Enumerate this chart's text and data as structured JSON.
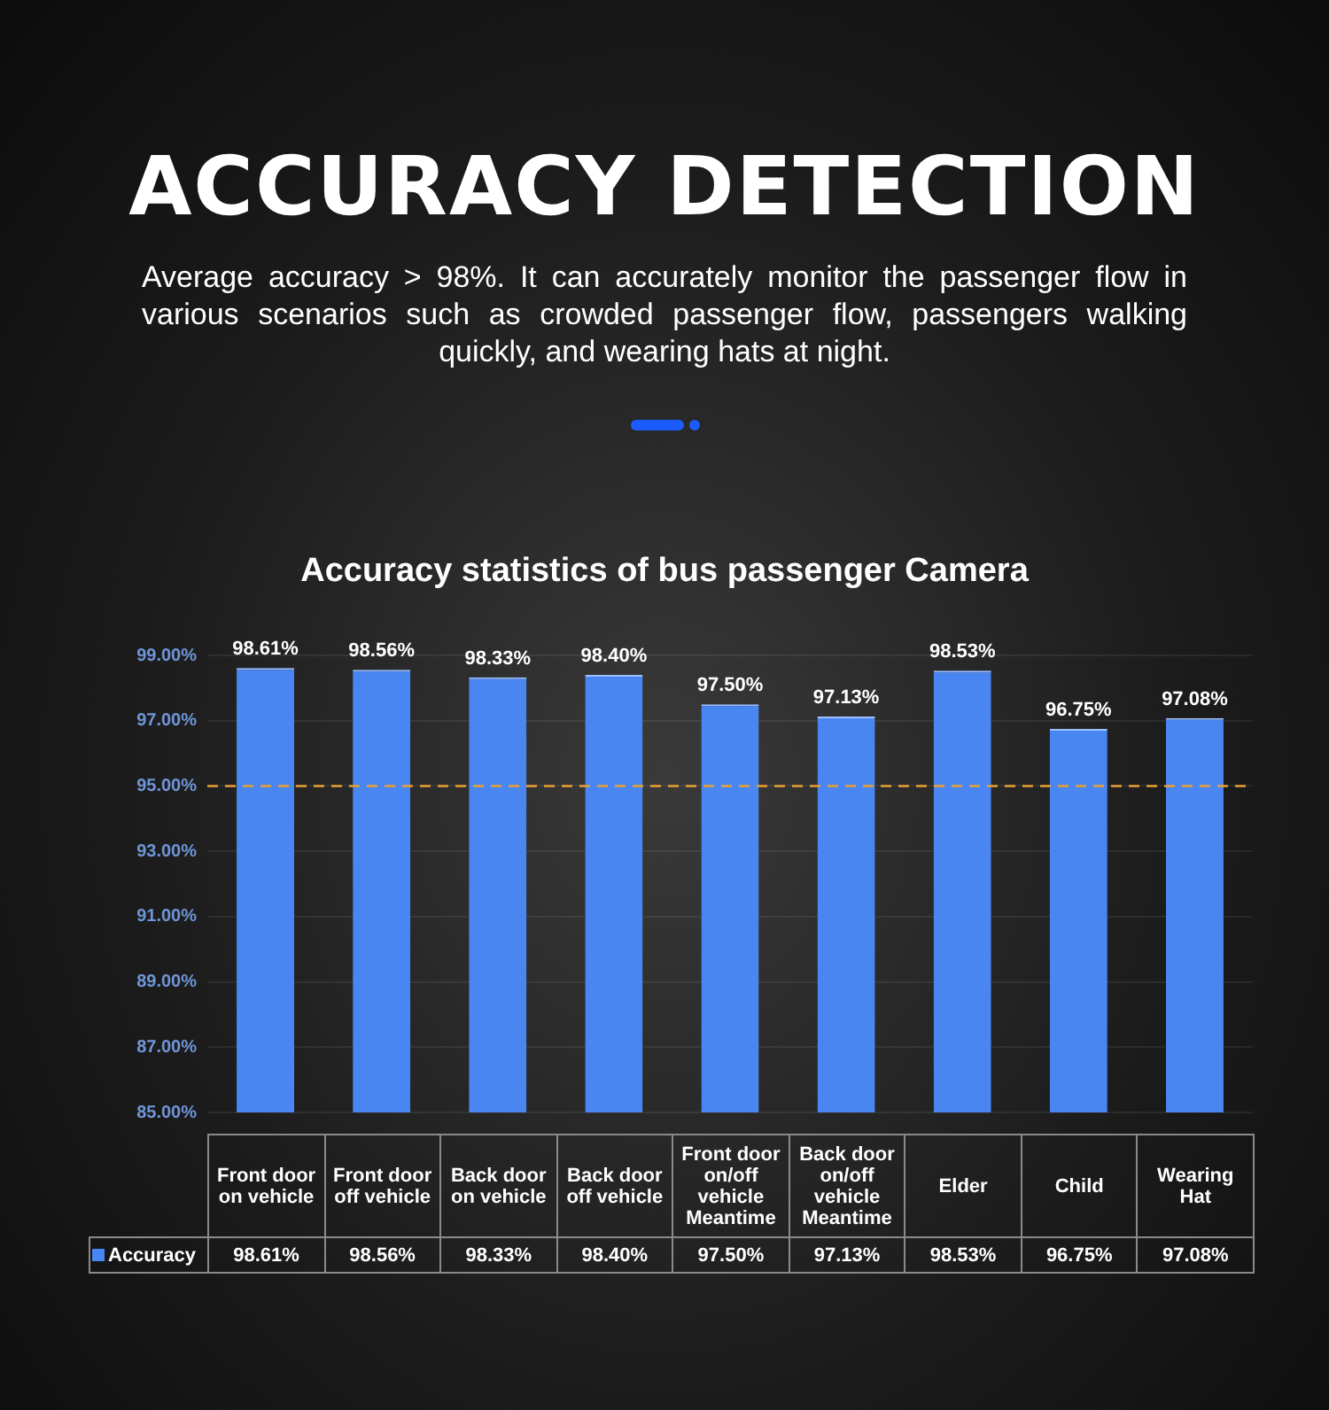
{
  "chart_data": {
    "type": "bar",
    "title": "ACCURACY DETECTION",
    "subtitle": "Average accuracy > 98%. It can accurately monitor the passenger flow in various scenarios such as crowded passenger flow, passengers walking quickly, and wearing hats at night.",
    "annotations": [
      "Accuracy statistics of bus passenger Camera"
    ],
    "categories": [
      "Front door on vehicle",
      "Front door off vehicle",
      "Back door on vehicle",
      "Back door off vehicle",
      "Front door on/off vehicle Meantime",
      "Back door on/off vehicle Meantime",
      "Elder",
      "Child",
      "Wearing Hat"
    ],
    "series": [
      {
        "name": "Accuracy",
        "color": "#4a86f2",
        "values": [
          98.61,
          98.56,
          98.33,
          98.4,
          97.5,
          97.13,
          98.53,
          96.75,
          97.08
        ]
      }
    ],
    "value_labels": [
      "98.61%",
      "98.56%",
      "98.33%",
      "98.40%",
      "97.50%",
      "97.13%",
      "98.53%",
      "96.75%",
      "97.08%"
    ],
    "ylim": [
      85,
      99
    ],
    "yticks": [
      {
        "value": 85,
        "label": "85.00%"
      },
      {
        "value": 87,
        "label": "87.00%"
      },
      {
        "value": 89,
        "label": "89.00%"
      },
      {
        "value": 91,
        "label": "91.00%"
      },
      {
        "value": 93,
        "label": "93.00%"
      },
      {
        "value": 95,
        "label": "95.00%"
      },
      {
        "value": 97,
        "label": "97.00%"
      },
      {
        "value": 99,
        "label": "99.00%"
      }
    ],
    "ref_lines": [
      {
        "axis": "y",
        "value": 95,
        "color": "#e8a030",
        "line_style": "dashed"
      }
    ],
    "grid": "y",
    "legend": "bottom"
  }
}
